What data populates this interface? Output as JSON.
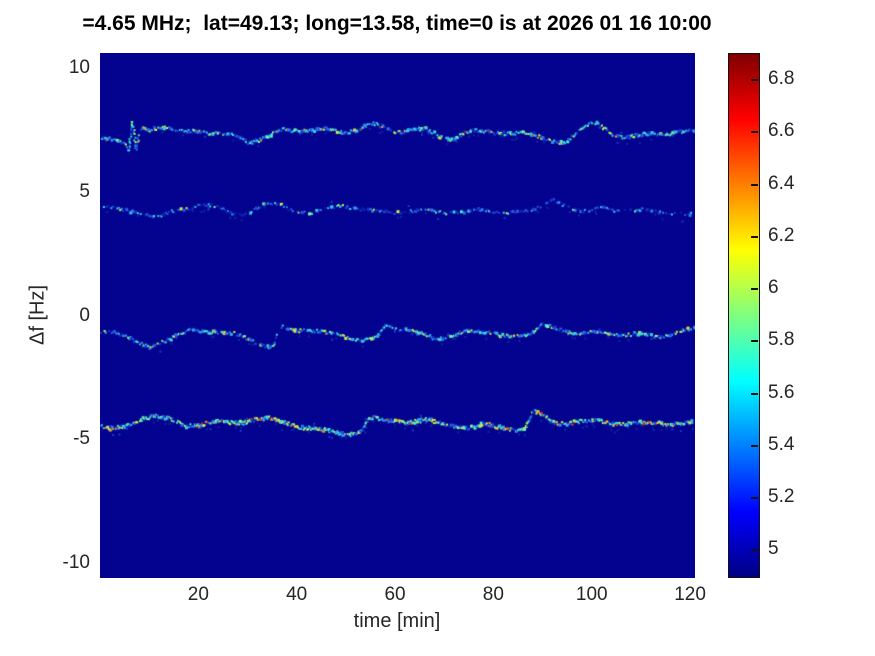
{
  "chart_data": {
    "type": "heatmap",
    "title": "=4.65 MHz;  lat=49.13; long=13.58, time=0 is at 2026 01 16 10:00",
    "xlabel": "time [min]",
    "ylabel": "Δf [Hz]",
    "xlim": [
      0,
      121
    ],
    "ylim": [
      -10.6,
      10.6
    ],
    "xticks": [
      20,
      40,
      60,
      80,
      100,
      120
    ],
    "yticks": [
      10,
      5,
      0,
      -5,
      -10
    ],
    "grid": false,
    "legend": "none",
    "background_color": "#03038f",
    "colorbar": {
      "colormap": "jet",
      "range": [
        4.89,
        6.9
      ],
      "tick_values": [
        5,
        5.2,
        5.4,
        5.6,
        5.8,
        6,
        6.2,
        6.4,
        6.6,
        6.8
      ],
      "tick_labels": [
        "5",
        "5.2",
        "5.4",
        "5.6",
        "5.8",
        "6",
        "6.2",
        "6.4",
        "6.6",
        "6.8"
      ],
      "stops": [
        {
          "pos": 0.0,
          "color": "#000084"
        },
        {
          "pos": 0.125,
          "color": "#0000ff"
        },
        {
          "pos": 0.375,
          "color": "#00ffff"
        },
        {
          "pos": 0.625,
          "color": "#ffff00"
        },
        {
          "pos": 0.875,
          "color": "#ff0000"
        },
        {
          "pos": 1.0,
          "color": "#7f0000"
        }
      ]
    },
    "traces": [
      {
        "name": "doppler-trace-plus7.3Hz",
        "df_baseline": 7.3,
        "step": 0.22,
        "gap": 0.18,
        "jitter": 0.14,
        "echo": 0.08,
        "points": [
          [
            0,
            7.15
          ],
          [
            3,
            7.05
          ],
          [
            5,
            6.95
          ],
          [
            5.8,
            6.6
          ],
          [
            6.4,
            8.05
          ],
          [
            7.2,
            6.7
          ],
          [
            8,
            7.6
          ],
          [
            10,
            7.5
          ],
          [
            13,
            7.55
          ],
          [
            16,
            7.45
          ],
          [
            19,
            7.5
          ],
          [
            22,
            7.35
          ],
          [
            25,
            7.3
          ],
          [
            28,
            7.25
          ],
          [
            30,
            7.0
          ],
          [
            32,
            7.05
          ],
          [
            34,
            7.2
          ],
          [
            37,
            7.5
          ],
          [
            40,
            7.5
          ],
          [
            43,
            7.45
          ],
          [
            46,
            7.5
          ],
          [
            49,
            7.4
          ],
          [
            52,
            7.5
          ],
          [
            55,
            7.75
          ],
          [
            57,
            7.6
          ],
          [
            60,
            7.4
          ],
          [
            63,
            7.55
          ],
          [
            66,
            7.5
          ],
          [
            69,
            7.2
          ],
          [
            71,
            7.1
          ],
          [
            74,
            7.4
          ],
          [
            77,
            7.45
          ],
          [
            80,
            7.35
          ],
          [
            83,
            7.4
          ],
          [
            86,
            7.35
          ],
          [
            89,
            7.2
          ],
          [
            92,
            7.05
          ],
          [
            94,
            7.0
          ],
          [
            97,
            7.4
          ],
          [
            100,
            7.8
          ],
          [
            102,
            7.6
          ],
          [
            105,
            7.25
          ],
          [
            108,
            7.2
          ],
          [
            111,
            7.3
          ],
          [
            114,
            7.35
          ],
          [
            117,
            7.4
          ],
          [
            120,
            7.45
          ],
          [
            121,
            7.4
          ]
        ],
        "palette": [
          [
            "#1c39cf",
            16
          ],
          [
            "#2b55e4",
            14
          ],
          [
            "#2e7df2",
            12
          ],
          [
            "#2fb3f0",
            16
          ],
          [
            "#35d8e3",
            14
          ],
          [
            "#45f2cf",
            8
          ],
          [
            "#7df79b",
            6
          ],
          [
            "#aaf768",
            4
          ],
          [
            "#d8f545",
            4
          ],
          [
            "#f5e32e",
            3
          ],
          [
            "#f7b02a",
            2
          ],
          [
            "#ef7f1e",
            1
          ]
        ]
      },
      {
        "name": "doppler-trace-plus4.2Hz",
        "df_baseline": 4.2,
        "step": 0.3,
        "gap": 0.32,
        "jitter": 0.12,
        "echo": 0.05,
        "points": [
          [
            0,
            4.4
          ],
          [
            3,
            4.3
          ],
          [
            6,
            4.2
          ],
          [
            9,
            4.1
          ],
          [
            12,
            4.0
          ],
          [
            15,
            4.2
          ],
          [
            18,
            4.35
          ],
          [
            20,
            4.5
          ],
          [
            23,
            4.4
          ],
          [
            26,
            4.15
          ],
          [
            29,
            4.1
          ],
          [
            32,
            4.35
          ],
          [
            34,
            4.5
          ],
          [
            37,
            4.4
          ],
          [
            40,
            4.2
          ],
          [
            43,
            4.15
          ],
          [
            46,
            4.3
          ],
          [
            49,
            4.45
          ],
          [
            52,
            4.35
          ],
          [
            55,
            4.2
          ],
          [
            58,
            4.15
          ],
          [
            61,
            4.2
          ],
          [
            64,
            4.25
          ],
          [
            67,
            4.2
          ],
          [
            70,
            4.15
          ],
          [
            73,
            4.2
          ],
          [
            76,
            4.25
          ],
          [
            79,
            4.2
          ],
          [
            82,
            4.15
          ],
          [
            85,
            4.2
          ],
          [
            88,
            4.25
          ],
          [
            90,
            4.45
          ],
          [
            92,
            4.7
          ],
          [
            94,
            4.5
          ],
          [
            96,
            4.25
          ],
          [
            99,
            4.2
          ],
          [
            102,
            4.35
          ],
          [
            105,
            4.25
          ],
          [
            108,
            4.2
          ],
          [
            111,
            4.25
          ],
          [
            114,
            4.2
          ],
          [
            117,
            4.15
          ],
          [
            120,
            4.05
          ],
          [
            121,
            4.05
          ]
        ],
        "palette": [
          [
            "#101fae",
            20
          ],
          [
            "#1c39cf",
            22
          ],
          [
            "#2b55e4",
            16
          ],
          [
            "#2e7df2",
            12
          ],
          [
            "#2fb3f0",
            10
          ],
          [
            "#35d8e3",
            6
          ],
          [
            "#45f2cf",
            3
          ],
          [
            "#7df79b",
            2
          ],
          [
            "#d8f545",
            1
          ]
        ]
      },
      {
        "name": "doppler-trace-minus0.8Hz",
        "df_baseline": -0.8,
        "step": 0.24,
        "gap": 0.2,
        "jitter": 0.13,
        "echo": 0.07,
        "points": [
          [
            0,
            -0.66
          ],
          [
            3,
            -0.75
          ],
          [
            6,
            -0.9
          ],
          [
            8,
            -1.1
          ],
          [
            10,
            -1.27
          ],
          [
            13,
            -1.1
          ],
          [
            15,
            -0.85
          ],
          [
            18,
            -0.55
          ],
          [
            21,
            -0.65
          ],
          [
            24,
            -0.75
          ],
          [
            27,
            -0.7
          ],
          [
            30,
            -0.9
          ],
          [
            33,
            -1.25
          ],
          [
            35,
            -1.3
          ],
          [
            36.5,
            -0.45
          ],
          [
            39,
            -0.55
          ],
          [
            42,
            -0.6
          ],
          [
            45,
            -0.7
          ],
          [
            48,
            -0.75
          ],
          [
            51,
            -0.9
          ],
          [
            54,
            -1.0
          ],
          [
            56,
            -0.95
          ],
          [
            58,
            -0.4
          ],
          [
            60,
            -0.5
          ],
          [
            63,
            -0.6
          ],
          [
            66,
            -0.8
          ],
          [
            68,
            -1.0
          ],
          [
            71,
            -0.8
          ],
          [
            74,
            -0.6
          ],
          [
            77,
            -0.7
          ],
          [
            80,
            -0.75
          ],
          [
            83,
            -0.8
          ],
          [
            86,
            -0.85
          ],
          [
            88,
            -0.7
          ],
          [
            90,
            -0.35
          ],
          [
            92,
            -0.45
          ],
          [
            95,
            -0.65
          ],
          [
            98,
            -0.75
          ],
          [
            101,
            -0.7
          ],
          [
            104,
            -0.75
          ],
          [
            107,
            -0.8
          ],
          [
            110,
            -0.75
          ],
          [
            113,
            -0.85
          ],
          [
            116,
            -0.75
          ],
          [
            119,
            -0.6
          ],
          [
            121,
            -0.5
          ]
        ],
        "palette": [
          [
            "#1c39cf",
            14
          ],
          [
            "#2b55e4",
            14
          ],
          [
            "#2e7df2",
            12
          ],
          [
            "#2fb3f0",
            14
          ],
          [
            "#35d8e3",
            12
          ],
          [
            "#45f2cf",
            8
          ],
          [
            "#7df79b",
            5
          ],
          [
            "#aaf768",
            4
          ],
          [
            "#d8f545",
            4
          ],
          [
            "#f5e32e",
            3
          ],
          [
            "#f7b02a",
            1
          ]
        ]
      },
      {
        "name": "doppler-trace-minus4.4Hz",
        "df_baseline": -4.4,
        "step": 0.18,
        "gap": 0.1,
        "jitter": 0.15,
        "echo": 0.08,
        "points": [
          [
            0,
            -4.45
          ],
          [
            2,
            -4.6
          ],
          [
            5,
            -4.5
          ],
          [
            8,
            -4.15
          ],
          [
            11,
            -4.05
          ],
          [
            14,
            -4.2
          ],
          [
            17,
            -4.45
          ],
          [
            20,
            -4.4
          ],
          [
            23,
            -4.3
          ],
          [
            26,
            -4.35
          ],
          [
            29,
            -4.3
          ],
          [
            32,
            -4.15
          ],
          [
            35,
            -4.2
          ],
          [
            38,
            -4.35
          ],
          [
            41,
            -4.5
          ],
          [
            44,
            -4.6
          ],
          [
            47,
            -4.7
          ],
          [
            50,
            -4.8
          ],
          [
            53,
            -4.7
          ],
          [
            54.5,
            -4.15
          ],
          [
            57,
            -4.2
          ],
          [
            60,
            -4.25
          ],
          [
            63,
            -4.3
          ],
          [
            66,
            -4.25
          ],
          [
            69,
            -4.35
          ],
          [
            72,
            -4.45
          ],
          [
            75,
            -4.55
          ],
          [
            78,
            -4.4
          ],
          [
            81,
            -4.5
          ],
          [
            84,
            -4.6
          ],
          [
            86,
            -4.65
          ],
          [
            88,
            -3.9
          ],
          [
            89.5,
            -4.0
          ],
          [
            92,
            -4.3
          ],
          [
            95,
            -4.35
          ],
          [
            98,
            -4.3
          ],
          [
            101,
            -4.25
          ],
          [
            104,
            -4.35
          ],
          [
            107,
            -4.4
          ],
          [
            110,
            -4.35
          ],
          [
            113,
            -4.3
          ],
          [
            116,
            -4.4
          ],
          [
            119,
            -4.35
          ],
          [
            121,
            -4.35
          ]
        ],
        "palette": [
          [
            "#1c39cf",
            10
          ],
          [
            "#2b55e4",
            10
          ],
          [
            "#2e7df2",
            10
          ],
          [
            "#2fb3f0",
            12
          ],
          [
            "#35d8e3",
            12
          ],
          [
            "#45f2cf",
            10
          ],
          [
            "#7df79b",
            8
          ],
          [
            "#aaf768",
            7
          ],
          [
            "#d8f545",
            6
          ],
          [
            "#f5e32e",
            5
          ],
          [
            "#f7b02a",
            4
          ],
          [
            "#ef7f1e",
            3
          ],
          [
            "#e2491a",
            2
          ],
          [
            "#c22d12",
            1
          ]
        ]
      }
    ]
  }
}
